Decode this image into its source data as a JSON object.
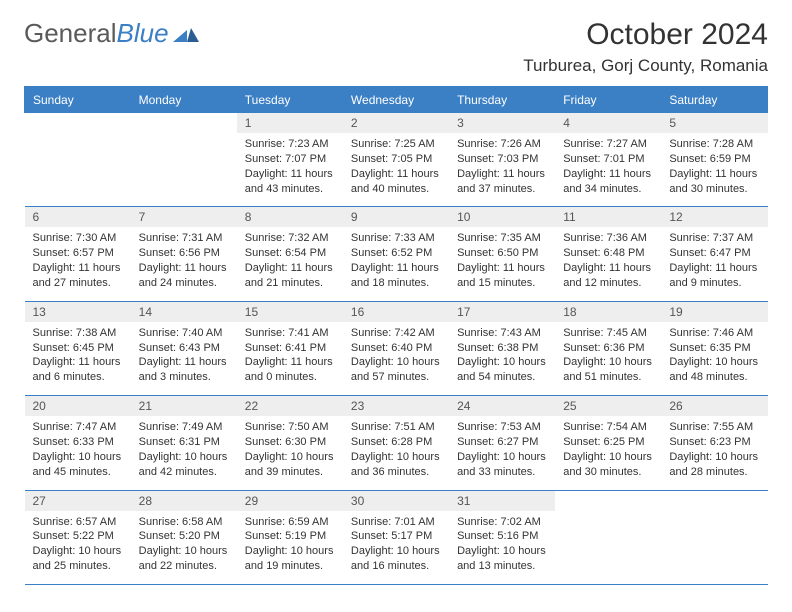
{
  "brand": {
    "text1": "General",
    "text2": "Blue"
  },
  "title": "October 2024",
  "location": "Turburea, Gorj County, Romania",
  "colors": {
    "accent": "#3b7fc4",
    "header_text": "#ffffff",
    "day_num_bg": "#eeeeee",
    "body_bg": "#ffffff",
    "text": "#333333"
  },
  "day_names": [
    "Sunday",
    "Monday",
    "Tuesday",
    "Wednesday",
    "Thursday",
    "Friday",
    "Saturday"
  ],
  "weeks": [
    [
      null,
      null,
      {
        "n": "1",
        "sr": "Sunrise: 7:23 AM",
        "ss": "Sunset: 7:07 PM",
        "dl": "Daylight: 11 hours and 43 minutes."
      },
      {
        "n": "2",
        "sr": "Sunrise: 7:25 AM",
        "ss": "Sunset: 7:05 PM",
        "dl": "Daylight: 11 hours and 40 minutes."
      },
      {
        "n": "3",
        "sr": "Sunrise: 7:26 AM",
        "ss": "Sunset: 7:03 PM",
        "dl": "Daylight: 11 hours and 37 minutes."
      },
      {
        "n": "4",
        "sr": "Sunrise: 7:27 AM",
        "ss": "Sunset: 7:01 PM",
        "dl": "Daylight: 11 hours and 34 minutes."
      },
      {
        "n": "5",
        "sr": "Sunrise: 7:28 AM",
        "ss": "Sunset: 6:59 PM",
        "dl": "Daylight: 11 hours and 30 minutes."
      }
    ],
    [
      {
        "n": "6",
        "sr": "Sunrise: 7:30 AM",
        "ss": "Sunset: 6:57 PM",
        "dl": "Daylight: 11 hours and 27 minutes."
      },
      {
        "n": "7",
        "sr": "Sunrise: 7:31 AM",
        "ss": "Sunset: 6:56 PM",
        "dl": "Daylight: 11 hours and 24 minutes."
      },
      {
        "n": "8",
        "sr": "Sunrise: 7:32 AM",
        "ss": "Sunset: 6:54 PM",
        "dl": "Daylight: 11 hours and 21 minutes."
      },
      {
        "n": "9",
        "sr": "Sunrise: 7:33 AM",
        "ss": "Sunset: 6:52 PM",
        "dl": "Daylight: 11 hours and 18 minutes."
      },
      {
        "n": "10",
        "sr": "Sunrise: 7:35 AM",
        "ss": "Sunset: 6:50 PM",
        "dl": "Daylight: 11 hours and 15 minutes."
      },
      {
        "n": "11",
        "sr": "Sunrise: 7:36 AM",
        "ss": "Sunset: 6:48 PM",
        "dl": "Daylight: 11 hours and 12 minutes."
      },
      {
        "n": "12",
        "sr": "Sunrise: 7:37 AM",
        "ss": "Sunset: 6:47 PM",
        "dl": "Daylight: 11 hours and 9 minutes."
      }
    ],
    [
      {
        "n": "13",
        "sr": "Sunrise: 7:38 AM",
        "ss": "Sunset: 6:45 PM",
        "dl": "Daylight: 11 hours and 6 minutes."
      },
      {
        "n": "14",
        "sr": "Sunrise: 7:40 AM",
        "ss": "Sunset: 6:43 PM",
        "dl": "Daylight: 11 hours and 3 minutes."
      },
      {
        "n": "15",
        "sr": "Sunrise: 7:41 AM",
        "ss": "Sunset: 6:41 PM",
        "dl": "Daylight: 11 hours and 0 minutes."
      },
      {
        "n": "16",
        "sr": "Sunrise: 7:42 AM",
        "ss": "Sunset: 6:40 PM",
        "dl": "Daylight: 10 hours and 57 minutes."
      },
      {
        "n": "17",
        "sr": "Sunrise: 7:43 AM",
        "ss": "Sunset: 6:38 PM",
        "dl": "Daylight: 10 hours and 54 minutes."
      },
      {
        "n": "18",
        "sr": "Sunrise: 7:45 AM",
        "ss": "Sunset: 6:36 PM",
        "dl": "Daylight: 10 hours and 51 minutes."
      },
      {
        "n": "19",
        "sr": "Sunrise: 7:46 AM",
        "ss": "Sunset: 6:35 PM",
        "dl": "Daylight: 10 hours and 48 minutes."
      }
    ],
    [
      {
        "n": "20",
        "sr": "Sunrise: 7:47 AM",
        "ss": "Sunset: 6:33 PM",
        "dl": "Daylight: 10 hours and 45 minutes."
      },
      {
        "n": "21",
        "sr": "Sunrise: 7:49 AM",
        "ss": "Sunset: 6:31 PM",
        "dl": "Daylight: 10 hours and 42 minutes."
      },
      {
        "n": "22",
        "sr": "Sunrise: 7:50 AM",
        "ss": "Sunset: 6:30 PM",
        "dl": "Daylight: 10 hours and 39 minutes."
      },
      {
        "n": "23",
        "sr": "Sunrise: 7:51 AM",
        "ss": "Sunset: 6:28 PM",
        "dl": "Daylight: 10 hours and 36 minutes."
      },
      {
        "n": "24",
        "sr": "Sunrise: 7:53 AM",
        "ss": "Sunset: 6:27 PM",
        "dl": "Daylight: 10 hours and 33 minutes."
      },
      {
        "n": "25",
        "sr": "Sunrise: 7:54 AM",
        "ss": "Sunset: 6:25 PM",
        "dl": "Daylight: 10 hours and 30 minutes."
      },
      {
        "n": "26",
        "sr": "Sunrise: 7:55 AM",
        "ss": "Sunset: 6:23 PM",
        "dl": "Daylight: 10 hours and 28 minutes."
      }
    ],
    [
      {
        "n": "27",
        "sr": "Sunrise: 6:57 AM",
        "ss": "Sunset: 5:22 PM",
        "dl": "Daylight: 10 hours and 25 minutes."
      },
      {
        "n": "28",
        "sr": "Sunrise: 6:58 AM",
        "ss": "Sunset: 5:20 PM",
        "dl": "Daylight: 10 hours and 22 minutes."
      },
      {
        "n": "29",
        "sr": "Sunrise: 6:59 AM",
        "ss": "Sunset: 5:19 PM",
        "dl": "Daylight: 10 hours and 19 minutes."
      },
      {
        "n": "30",
        "sr": "Sunrise: 7:01 AM",
        "ss": "Sunset: 5:17 PM",
        "dl": "Daylight: 10 hours and 16 minutes."
      },
      {
        "n": "31",
        "sr": "Sunrise: 7:02 AM",
        "ss": "Sunset: 5:16 PM",
        "dl": "Daylight: 10 hours and 13 minutes."
      },
      null,
      null
    ]
  ]
}
